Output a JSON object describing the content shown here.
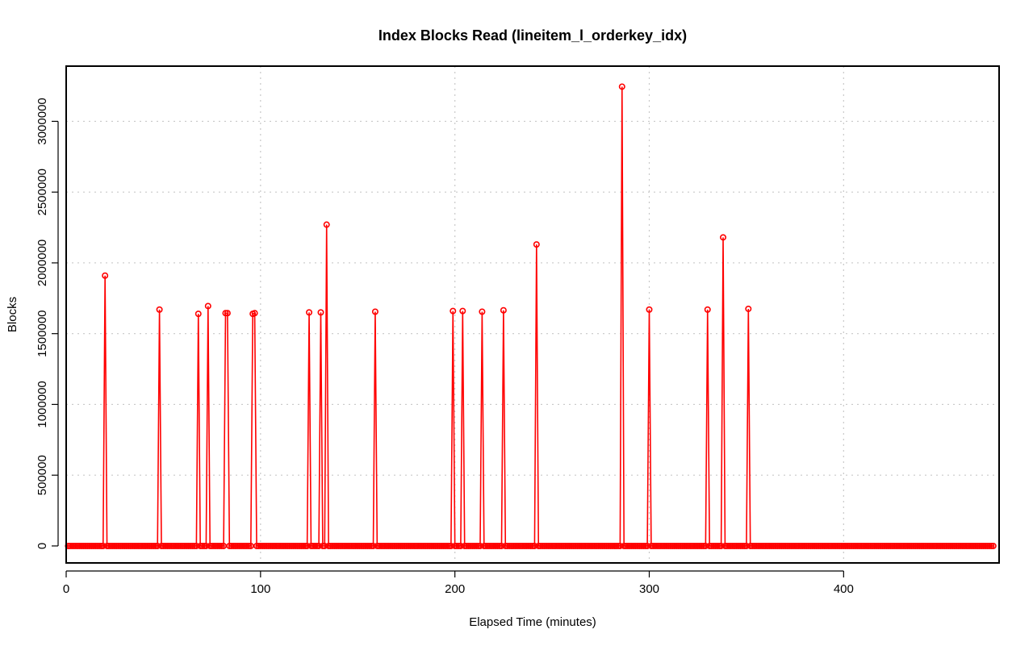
{
  "chart_data": {
    "type": "line",
    "title": "Index Blocks Read (lineitem_l_orderkey_idx)",
    "xlabel": "Elapsed Time (minutes)",
    "ylabel": "Blocks",
    "xlim": [
      0,
      480
    ],
    "ylim": [
      -120000,
      3390000
    ],
    "x_ticks": [
      0,
      100,
      200,
      300,
      400
    ],
    "x_tick_labels": [
      "0",
      "100",
      "200",
      "300",
      "400"
    ],
    "y_ticks": [
      0,
      500000,
      1000000,
      1500000,
      2000000,
      2500000,
      3000000
    ],
    "y_tick_labels": [
      "0",
      "500000",
      "1000000",
      "1500000",
      "2000000",
      "2500000",
      "3000000"
    ],
    "grid": true,
    "series_color": "#ff0000",
    "x_start": 1,
    "x_end": 477,
    "baseline_value": 0,
    "peaks": [
      {
        "x": 20,
        "y": 1910000
      },
      {
        "x": 48,
        "y": 1670000
      },
      {
        "x": 68,
        "y": 1640000
      },
      {
        "x": 73,
        "y": 1695000
      },
      {
        "x": 82,
        "y": 1645000
      },
      {
        "x": 83,
        "y": 1645000
      },
      {
        "x": 96,
        "y": 1640000
      },
      {
        "x": 97,
        "y": 1645000
      },
      {
        "x": 125,
        "y": 1650000
      },
      {
        "x": 131,
        "y": 1650000
      },
      {
        "x": 134,
        "y": 2270000
      },
      {
        "x": 159,
        "y": 1655000
      },
      {
        "x": 199,
        "y": 1660000
      },
      {
        "x": 204,
        "y": 1660000
      },
      {
        "x": 214,
        "y": 1655000
      },
      {
        "x": 225,
        "y": 1665000
      },
      {
        "x": 242,
        "y": 2130000
      },
      {
        "x": 286,
        "y": 3245000
      },
      {
        "x": 300,
        "y": 1670000
      },
      {
        "x": 330,
        "y": 1670000
      },
      {
        "x": 338,
        "y": 2180000
      },
      {
        "x": 351,
        "y": 1675000
      }
    ]
  }
}
